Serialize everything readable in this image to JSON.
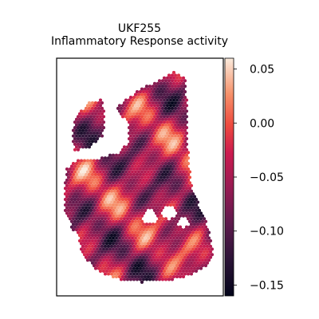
{
  "chart_data": {
    "type": "heatmap",
    "subtype": "spatial-transcriptomics-spot-map",
    "title_lines": [
      "UKF255",
      "Inflammatory Response activity"
    ],
    "colorbar": {
      "colormap": "rocket",
      "vmin": -0.16,
      "vmax": 0.06,
      "ticks": [
        0.05,
        0.0,
        -0.05,
        -0.1,
        -0.15
      ],
      "tick_labels": [
        "0.05",
        "0.00",
        "−0.05",
        "−0.10",
        "−0.15"
      ]
    },
    "axes": {
      "x_ticks": false,
      "y_ticks": false,
      "frame": true,
      "grid": false
    }
  }
}
